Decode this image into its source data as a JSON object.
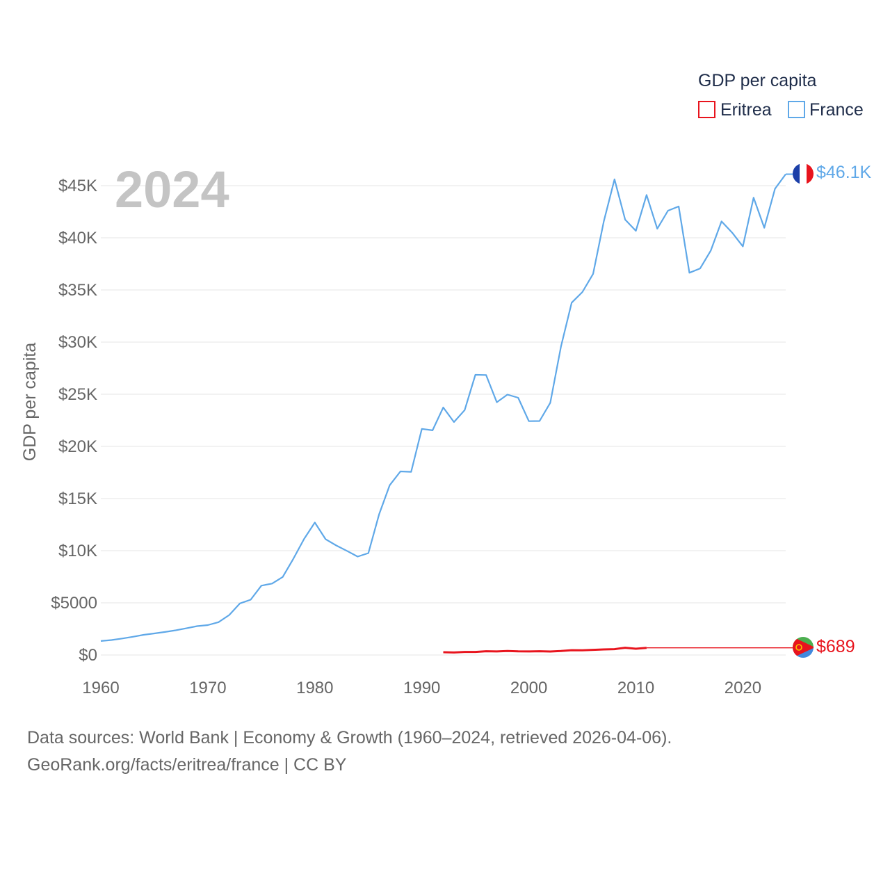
{
  "chart_data": {
    "type": "line",
    "year_label": "2024",
    "ylabel": "GDP per capita",
    "xlim": [
      1960,
      2024
    ],
    "ylim": [
      0,
      45000
    ],
    "x_ticks": [
      1960,
      1970,
      1980,
      1990,
      2000,
      2010,
      2020
    ],
    "x_tick_labels": [
      "1960",
      "1970",
      "1980",
      "1990",
      "2000",
      "2010",
      "2020"
    ],
    "y_ticks": [
      0,
      5000,
      10000,
      15000,
      20000,
      25000,
      30000,
      35000,
      40000,
      45000
    ],
    "y_tick_labels": [
      "$0",
      "$5000",
      "$10K",
      "$15K",
      "$20K",
      "$25K",
      "$30K",
      "$35K",
      "$40K",
      "$45K"
    ],
    "legend": {
      "title": "GDP per capita",
      "items": [
        {
          "name": "Eritrea",
          "color": "#e8141d"
        },
        {
          "name": "France",
          "color": "#5fa8e8"
        }
      ]
    },
    "series": [
      {
        "name": "France",
        "color": "#5fa8e8",
        "end_label": "$46.1K",
        "end_value": 46100,
        "x": [
          1960,
          1961,
          1962,
          1963,
          1964,
          1965,
          1966,
          1967,
          1968,
          1969,
          1970,
          1971,
          1972,
          1973,
          1974,
          1975,
          1976,
          1977,
          1978,
          1979,
          1980,
          1981,
          1982,
          1983,
          1984,
          1985,
          1986,
          1987,
          1988,
          1989,
          1990,
          1991,
          1992,
          1993,
          1994,
          1995,
          1996,
          1997,
          1998,
          1999,
          2000,
          2001,
          2002,
          2003,
          2004,
          2005,
          2006,
          2007,
          2008,
          2009,
          2010,
          2011,
          2012,
          2013,
          2014,
          2015,
          2016,
          2017,
          2018,
          2019,
          2020,
          2021,
          2022,
          2023,
          2024
        ],
        "values": [
          1340,
          1430,
          1580,
          1750,
          1930,
          2070,
          2210,
          2370,
          2560,
          2770,
          2870,
          3150,
          3830,
          4950,
          5300,
          6650,
          6850,
          7480,
          9240,
          11130,
          12700,
          11110,
          10500,
          9980,
          9430,
          9770,
          13480,
          16280,
          17600,
          17560,
          21680,
          21540,
          23730,
          22330,
          23480,
          26870,
          26840,
          24230,
          24970,
          24670,
          22420,
          22430,
          24180,
          29570,
          33780,
          34800,
          36540,
          41580,
          45610,
          41740,
          40670,
          44110,
          40870,
          42600,
          43010,
          36650,
          37060,
          38780,
          41570,
          40490,
          39170,
          43850,
          40960,
          44700,
          46100
        ]
      },
      {
        "name": "Eritrea",
        "color": "#e8141d",
        "end_label": "$689",
        "end_value": 689,
        "x": [
          1992,
          1993,
          1994,
          1995,
          1996,
          1997,
          1998,
          1999,
          2000,
          2001,
          2002,
          2003,
          2004,
          2005,
          2006,
          2007,
          2008,
          2009,
          2010,
          2011
        ],
        "values": [
          270,
          240,
          290,
          290,
          360,
          340,
          380,
          350,
          340,
          360,
          330,
          380,
          460,
          450,
          490,
          530,
          560,
          690,
          600,
          689
        ],
        "extension_to": 2024
      }
    ]
  },
  "footer": {
    "line1": "Data sources: World Bank | Economy & Growth (1960–2024, retrieved 2026-04-06).",
    "line2": "GeoRank.org/facts/eritrea/france | CC BY"
  },
  "colors": {
    "france": "#5fa8e8",
    "eritrea": "#e8141d",
    "grid": "#e6e6e6",
    "year_watermark": "#c4c4c4"
  },
  "icons": {
    "france_marker": "france-flag-icon",
    "eritrea_marker": "eritrea-flag-icon"
  }
}
